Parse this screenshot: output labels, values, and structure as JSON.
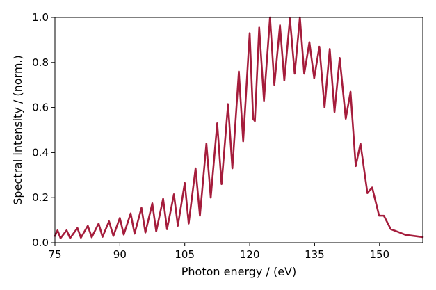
{
  "chart_data": {
    "type": "line",
    "title": "",
    "xlabel": "Photon energy / (eV)",
    "ylabel": "Spectral intensity / (norm.)",
    "xlim": [
      75,
      160
    ],
    "ylim": [
      0,
      1.0
    ],
    "xticks": [
      75,
      90,
      105,
      120,
      135,
      150
    ],
    "xtick_labels": [
      "75",
      "90",
      "105",
      "120",
      "135",
      "150"
    ],
    "yticks": [
      0.0,
      0.2,
      0.4,
      0.6,
      0.8,
      1.0
    ],
    "ytick_labels": [
      "0.0",
      "0.2",
      "0.4",
      "0.6",
      "0.8",
      "1.0"
    ],
    "grid": false,
    "legend": "none",
    "line_color": "#a51d3c",
    "series": [
      {
        "points": [
          [
            75,
            0.03
          ],
          [
            75.6,
            0.055
          ],
          [
            76.3,
            0.02
          ],
          [
            77.7,
            0.055
          ],
          [
            78.5,
            0.02
          ],
          [
            80.2,
            0.065
          ],
          [
            81,
            0.022
          ],
          [
            82.6,
            0.075
          ],
          [
            83.5,
            0.024
          ],
          [
            85.1,
            0.085
          ],
          [
            86,
            0.026
          ],
          [
            87.5,
            0.095
          ],
          [
            88.5,
            0.03
          ],
          [
            90,
            0.11
          ],
          [
            90.9,
            0.036
          ],
          [
            92.5,
            0.13
          ],
          [
            93.4,
            0.04
          ],
          [
            95,
            0.155
          ],
          [
            95.9,
            0.045
          ],
          [
            97.5,
            0.175
          ],
          [
            98.4,
            0.05
          ],
          [
            100,
            0.195
          ],
          [
            100.9,
            0.06
          ],
          [
            102.5,
            0.215
          ],
          [
            103.4,
            0.075
          ],
          [
            105,
            0.265
          ],
          [
            105.9,
            0.085
          ],
          [
            107.5,
            0.33
          ],
          [
            108.5,
            0.12
          ],
          [
            110,
            0.44
          ],
          [
            111,
            0.2
          ],
          [
            112.5,
            0.53
          ],
          [
            113.5,
            0.26
          ],
          [
            115,
            0.615
          ],
          [
            116,
            0.33
          ],
          [
            117.5,
            0.76
          ],
          [
            118.5,
            0.45
          ],
          [
            120,
            0.93
          ],
          [
            120.8,
            0.55
          ],
          [
            121.2,
            0.54
          ],
          [
            122.2,
            0.955
          ],
          [
            123.3,
            0.63
          ],
          [
            124.7,
            1.0
          ],
          [
            125.7,
            0.7
          ],
          [
            127,
            0.965
          ],
          [
            128,
            0.72
          ],
          [
            129.3,
            0.995
          ],
          [
            130.4,
            0.75
          ],
          [
            131.6,
            1.0
          ],
          [
            132.6,
            0.75
          ],
          [
            133.8,
            0.89
          ],
          [
            134.9,
            0.73
          ],
          [
            136.1,
            0.87
          ],
          [
            137.3,
            0.6
          ],
          [
            138.5,
            0.86
          ],
          [
            139.6,
            0.58
          ],
          [
            140.8,
            0.82
          ],
          [
            142.2,
            0.55
          ],
          [
            143.3,
            0.67
          ],
          [
            144.5,
            0.34
          ],
          [
            145.6,
            0.44
          ],
          [
            147.2,
            0.22
          ],
          [
            148.3,
            0.245
          ],
          [
            149.9,
            0.12
          ],
          [
            151,
            0.12
          ],
          [
            152.6,
            0.06
          ],
          [
            154,
            0.05
          ],
          [
            156,
            0.035
          ],
          [
            158,
            0.03
          ],
          [
            160,
            0.025
          ]
        ]
      }
    ]
  }
}
